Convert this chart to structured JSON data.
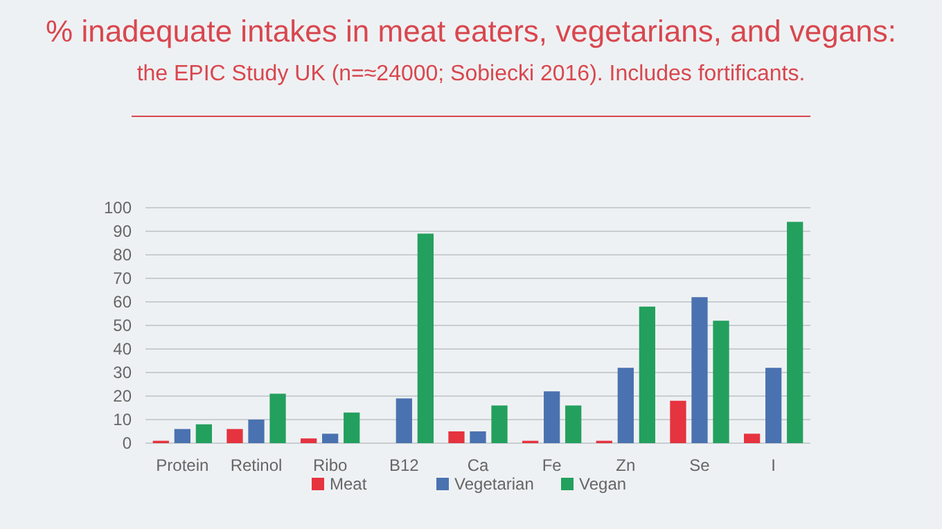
{
  "chart_data": {
    "type": "bar",
    "title": "% inadequate intakes in meat eaters, vegetarians, and vegans:",
    "subtitle": "the EPIC Study UK (n=≈24000; Sobiecki 2016). Includes fortificants.",
    "categories": [
      "Protein",
      "Retinol",
      "Ribo",
      "B12",
      "Ca",
      "Fe",
      "Zn",
      "Se",
      "I"
    ],
    "series": [
      {
        "name": "Meat",
        "color": "#e5333f",
        "values": [
          1,
          6,
          2,
          0,
          5,
          1,
          1,
          18,
          4
        ]
      },
      {
        "name": "Vegetarian",
        "color": "#4a72b0",
        "values": [
          6,
          10,
          4,
          19,
          5,
          22,
          32,
          62,
          32
        ]
      },
      {
        "name": "Vegan",
        "color": "#23a05e",
        "values": [
          8,
          21,
          13,
          89,
          16,
          16,
          58,
          52,
          94
        ]
      }
    ],
    "ylim": [
      0,
      100
    ],
    "yticks": [
      0,
      10,
      20,
      30,
      40,
      50,
      60,
      70,
      80,
      90,
      100
    ],
    "grid": "y",
    "legend": "bottom"
  }
}
